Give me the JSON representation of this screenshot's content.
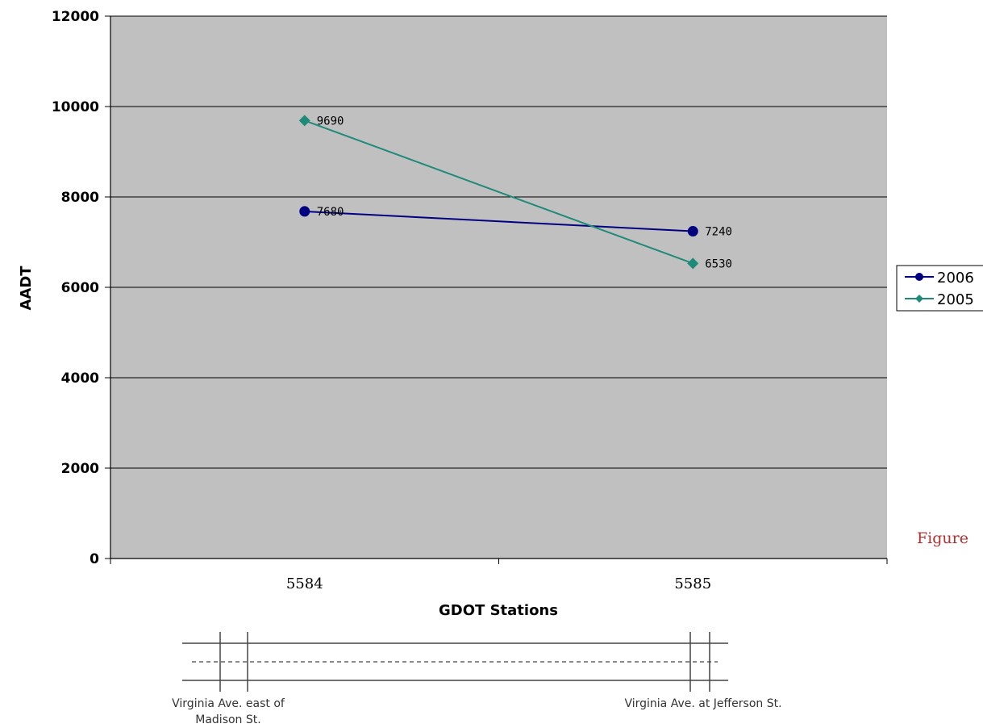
{
  "chart_data": {
    "type": "line",
    "title": "",
    "xlabel": "GDOT Stations",
    "ylabel": "AADT",
    "categories": [
      "5584",
      "5585"
    ],
    "ylim": [
      0,
      12000
    ],
    "yticks": [
      0,
      2000,
      4000,
      6000,
      8000,
      10000,
      12000
    ],
    "grid": true,
    "legend_position": "right",
    "series": [
      {
        "name": "2006",
        "values": [
          7680,
          7240
        ],
        "labels": [
          "7680",
          "7240"
        ],
        "color": "#000080",
        "marker": "circle"
      },
      {
        "name": "2005",
        "values": [
          9690,
          6530
        ],
        "labels": [
          "9690",
          "6530"
        ],
        "color": "#1f8a7a",
        "marker": "diamond"
      }
    ],
    "plot_background": "#c0c0c0"
  },
  "road_diagram": {
    "left_label_line1": "Virginia Ave. east of",
    "left_label_line2": "Madison St.",
    "right_label": "Virginia Ave. at Jefferson St."
  },
  "caption": "Figure"
}
